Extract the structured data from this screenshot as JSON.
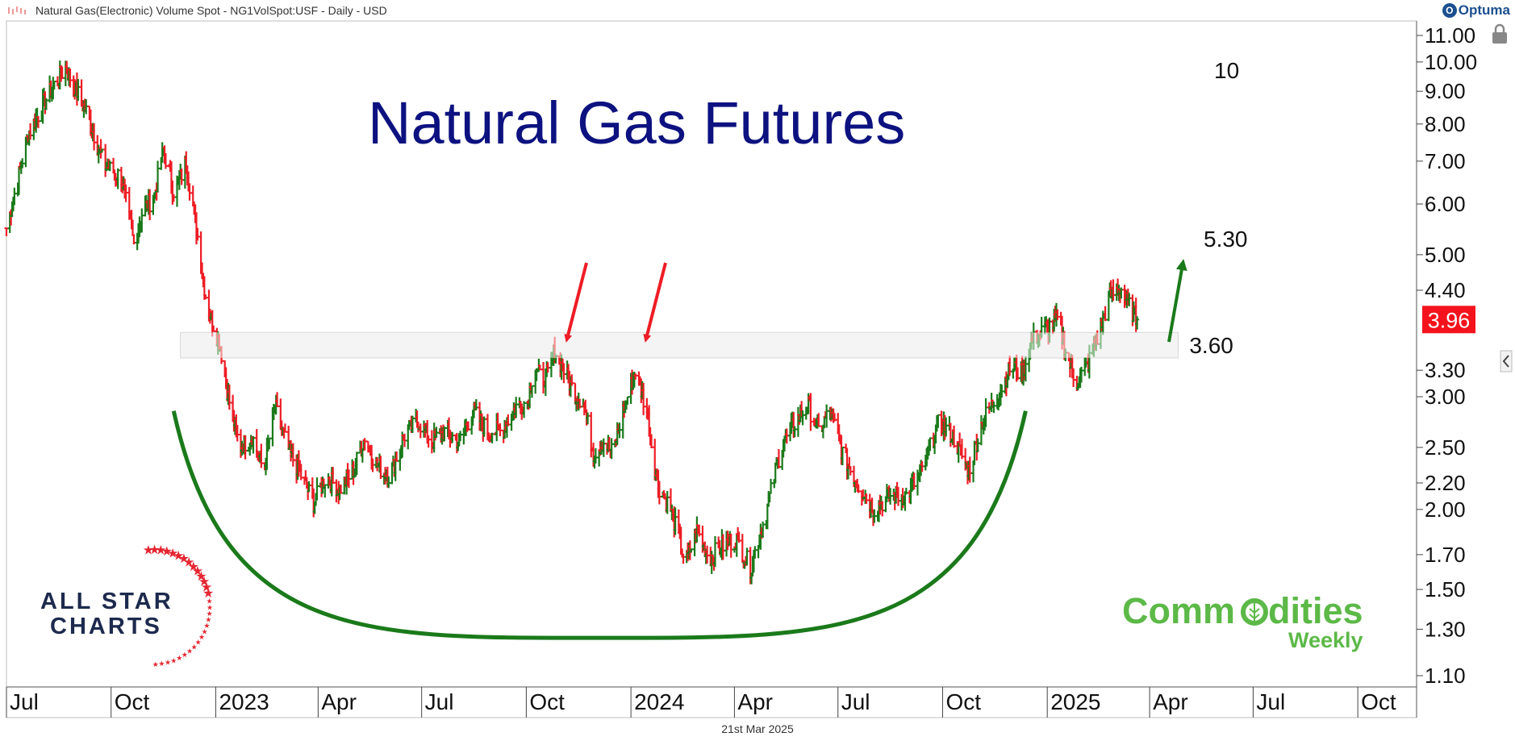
{
  "header": {
    "series_title": "Natural Gas(Electronic) Volume Spot - NG1VolSpot:USF - Daily - USD",
    "brand": "Optuma"
  },
  "footer": {
    "date": "21st Mar 2025"
  },
  "chart_data": {
    "type": "ohlc",
    "title": "Natural Gas Futures",
    "y_scale": "log",
    "ylim": [
      1.05,
      11.6
    ],
    "y_ticks": [
      "11.00",
      "10.00",
      "9.00",
      "8.00",
      "7.00",
      "6.00",
      "5.00",
      "4.40",
      "3.30",
      "3.00",
      "2.50",
      "2.20",
      "2.00",
      "1.70",
      "1.50",
      "1.30",
      "1.10"
    ],
    "x_ticks": [
      "Jul",
      "Oct",
      "2023",
      "Apr",
      "Jul",
      "Oct",
      "2024",
      "Apr",
      "Jul",
      "Oct",
      "2025",
      "Apr",
      "Jul",
      "Oct"
    ],
    "x_range": [
      "2022-07-01",
      "2025-11-16"
    ],
    "last_price": "3.96",
    "last_price_color": "#f4131c",
    "up_color": "#1a7a1a",
    "down_color": "#ee1c25",
    "support_zone": {
      "low": 3.45,
      "high": 3.78,
      "label": "3.60"
    },
    "target_labels": [
      "10",
      "5.30"
    ],
    "arc": {
      "from": "2022-11-25",
      "to": "2024-12-13",
      "top_price": 2.85,
      "bottom_price": 1.26,
      "color": "#1a7a1a"
    },
    "anchors": [
      [
        "2022-07-01",
        5.5
      ],
      [
        "2022-07-20",
        7.7
      ],
      [
        "2022-08-10",
        9.1
      ],
      [
        "2022-08-22",
        9.8
      ],
      [
        "2022-09-10",
        8.3
      ],
      [
        "2022-09-25",
        6.9
      ],
      [
        "2022-10-10",
        6.6
      ],
      [
        "2022-10-21",
        5.2
      ],
      [
        "2022-10-28",
        5.8
      ],
      [
        "2022-11-08",
        6.2
      ],
      [
        "2022-11-16",
        7.3
      ],
      [
        "2022-11-26",
        6.2
      ],
      [
        "2022-12-06",
        7.0
      ],
      [
        "2022-12-15",
        5.5
      ],
      [
        "2022-12-24",
        4.2
      ],
      [
        "2023-01-05",
        3.6
      ],
      [
        "2023-01-12",
        3.0
      ],
      [
        "2023-01-22",
        2.5
      ],
      [
        "2023-02-02",
        2.6
      ],
      [
        "2023-02-12",
        2.3
      ],
      [
        "2023-02-22",
        2.9
      ],
      [
        "2023-03-05",
        2.5
      ],
      [
        "2023-03-15",
        2.3
      ],
      [
        "2023-03-28",
        2.05
      ],
      [
        "2023-04-08",
        2.25
      ],
      [
        "2023-04-20",
        2.15
      ],
      [
        "2023-05-02",
        2.3
      ],
      [
        "2023-05-12",
        2.6
      ],
      [
        "2023-05-22",
        2.35
      ],
      [
        "2023-06-03",
        2.25
      ],
      [
        "2023-06-15",
        2.6
      ],
      [
        "2023-06-28",
        2.75
      ],
      [
        "2023-07-10",
        2.55
      ],
      [
        "2023-07-22",
        2.65
      ],
      [
        "2023-08-03",
        2.55
      ],
      [
        "2023-08-15",
        2.85
      ],
      [
        "2023-08-28",
        2.65
      ],
      [
        "2023-09-10",
        2.65
      ],
      [
        "2023-09-22",
        2.9
      ],
      [
        "2023-10-02",
        2.95
      ],
      [
        "2023-10-08",
        3.35
      ],
      [
        "2023-10-14",
        3.2
      ],
      [
        "2023-10-20",
        3.25
      ],
      [
        "2023-10-26",
        3.55
      ],
      [
        "2023-11-03",
        3.3
      ],
      [
        "2023-11-12",
        3.05
      ],
      [
        "2023-11-20",
        2.95
      ],
      [
        "2023-11-29",
        2.45
      ],
      [
        "2023-12-08",
        2.55
      ],
      [
        "2023-12-16",
        2.45
      ],
      [
        "2023-12-25",
        2.85
      ],
      [
        "2024-01-05",
        3.3
      ],
      [
        "2024-01-15",
        2.85
      ],
      [
        "2024-01-24",
        2.2
      ],
      [
        "2024-02-05",
        2.0
      ],
      [
        "2024-02-18",
        1.65
      ],
      [
        "2024-02-28",
        1.85
      ],
      [
        "2024-03-10",
        1.68
      ],
      [
        "2024-03-20",
        1.75
      ],
      [
        "2024-04-03",
        1.8
      ],
      [
        "2024-04-15",
        1.62
      ],
      [
        "2024-04-28",
        1.95
      ],
      [
        "2024-05-12",
        2.5
      ],
      [
        "2024-05-25",
        2.75
      ],
      [
        "2024-06-05",
        2.9
      ],
      [
        "2024-06-14",
        2.65
      ],
      [
        "2024-06-24",
        2.85
      ],
      [
        "2024-07-05",
        2.45
      ],
      [
        "2024-07-18",
        2.2
      ],
      [
        "2024-08-02",
        2.0
      ],
      [
        "2024-08-15",
        2.1
      ],
      [
        "2024-08-30",
        2.1
      ],
      [
        "2024-09-13",
        2.3
      ],
      [
        "2024-09-28",
        2.75
      ],
      [
        "2024-10-10",
        2.6
      ],
      [
        "2024-10-24",
        2.3
      ],
      [
        "2024-11-05",
        2.75
      ],
      [
        "2024-11-20",
        3.05
      ],
      [
        "2024-11-30",
        3.35
      ],
      [
        "2024-12-10",
        3.25
      ],
      [
        "2024-12-18",
        3.65
      ],
      [
        "2024-12-28",
        3.8
      ],
      [
        "2025-01-10",
        3.95
      ],
      [
        "2025-01-18",
        3.5
      ],
      [
        "2025-01-26",
        3.15
      ],
      [
        "2025-02-05",
        3.35
      ],
      [
        "2025-02-15",
        3.75
      ],
      [
        "2025-02-25",
        4.3
      ],
      [
        "2025-03-06",
        4.45
      ],
      [
        "2025-03-14",
        4.15
      ],
      [
        "2025-03-21",
        3.96
      ]
    ]
  }
}
